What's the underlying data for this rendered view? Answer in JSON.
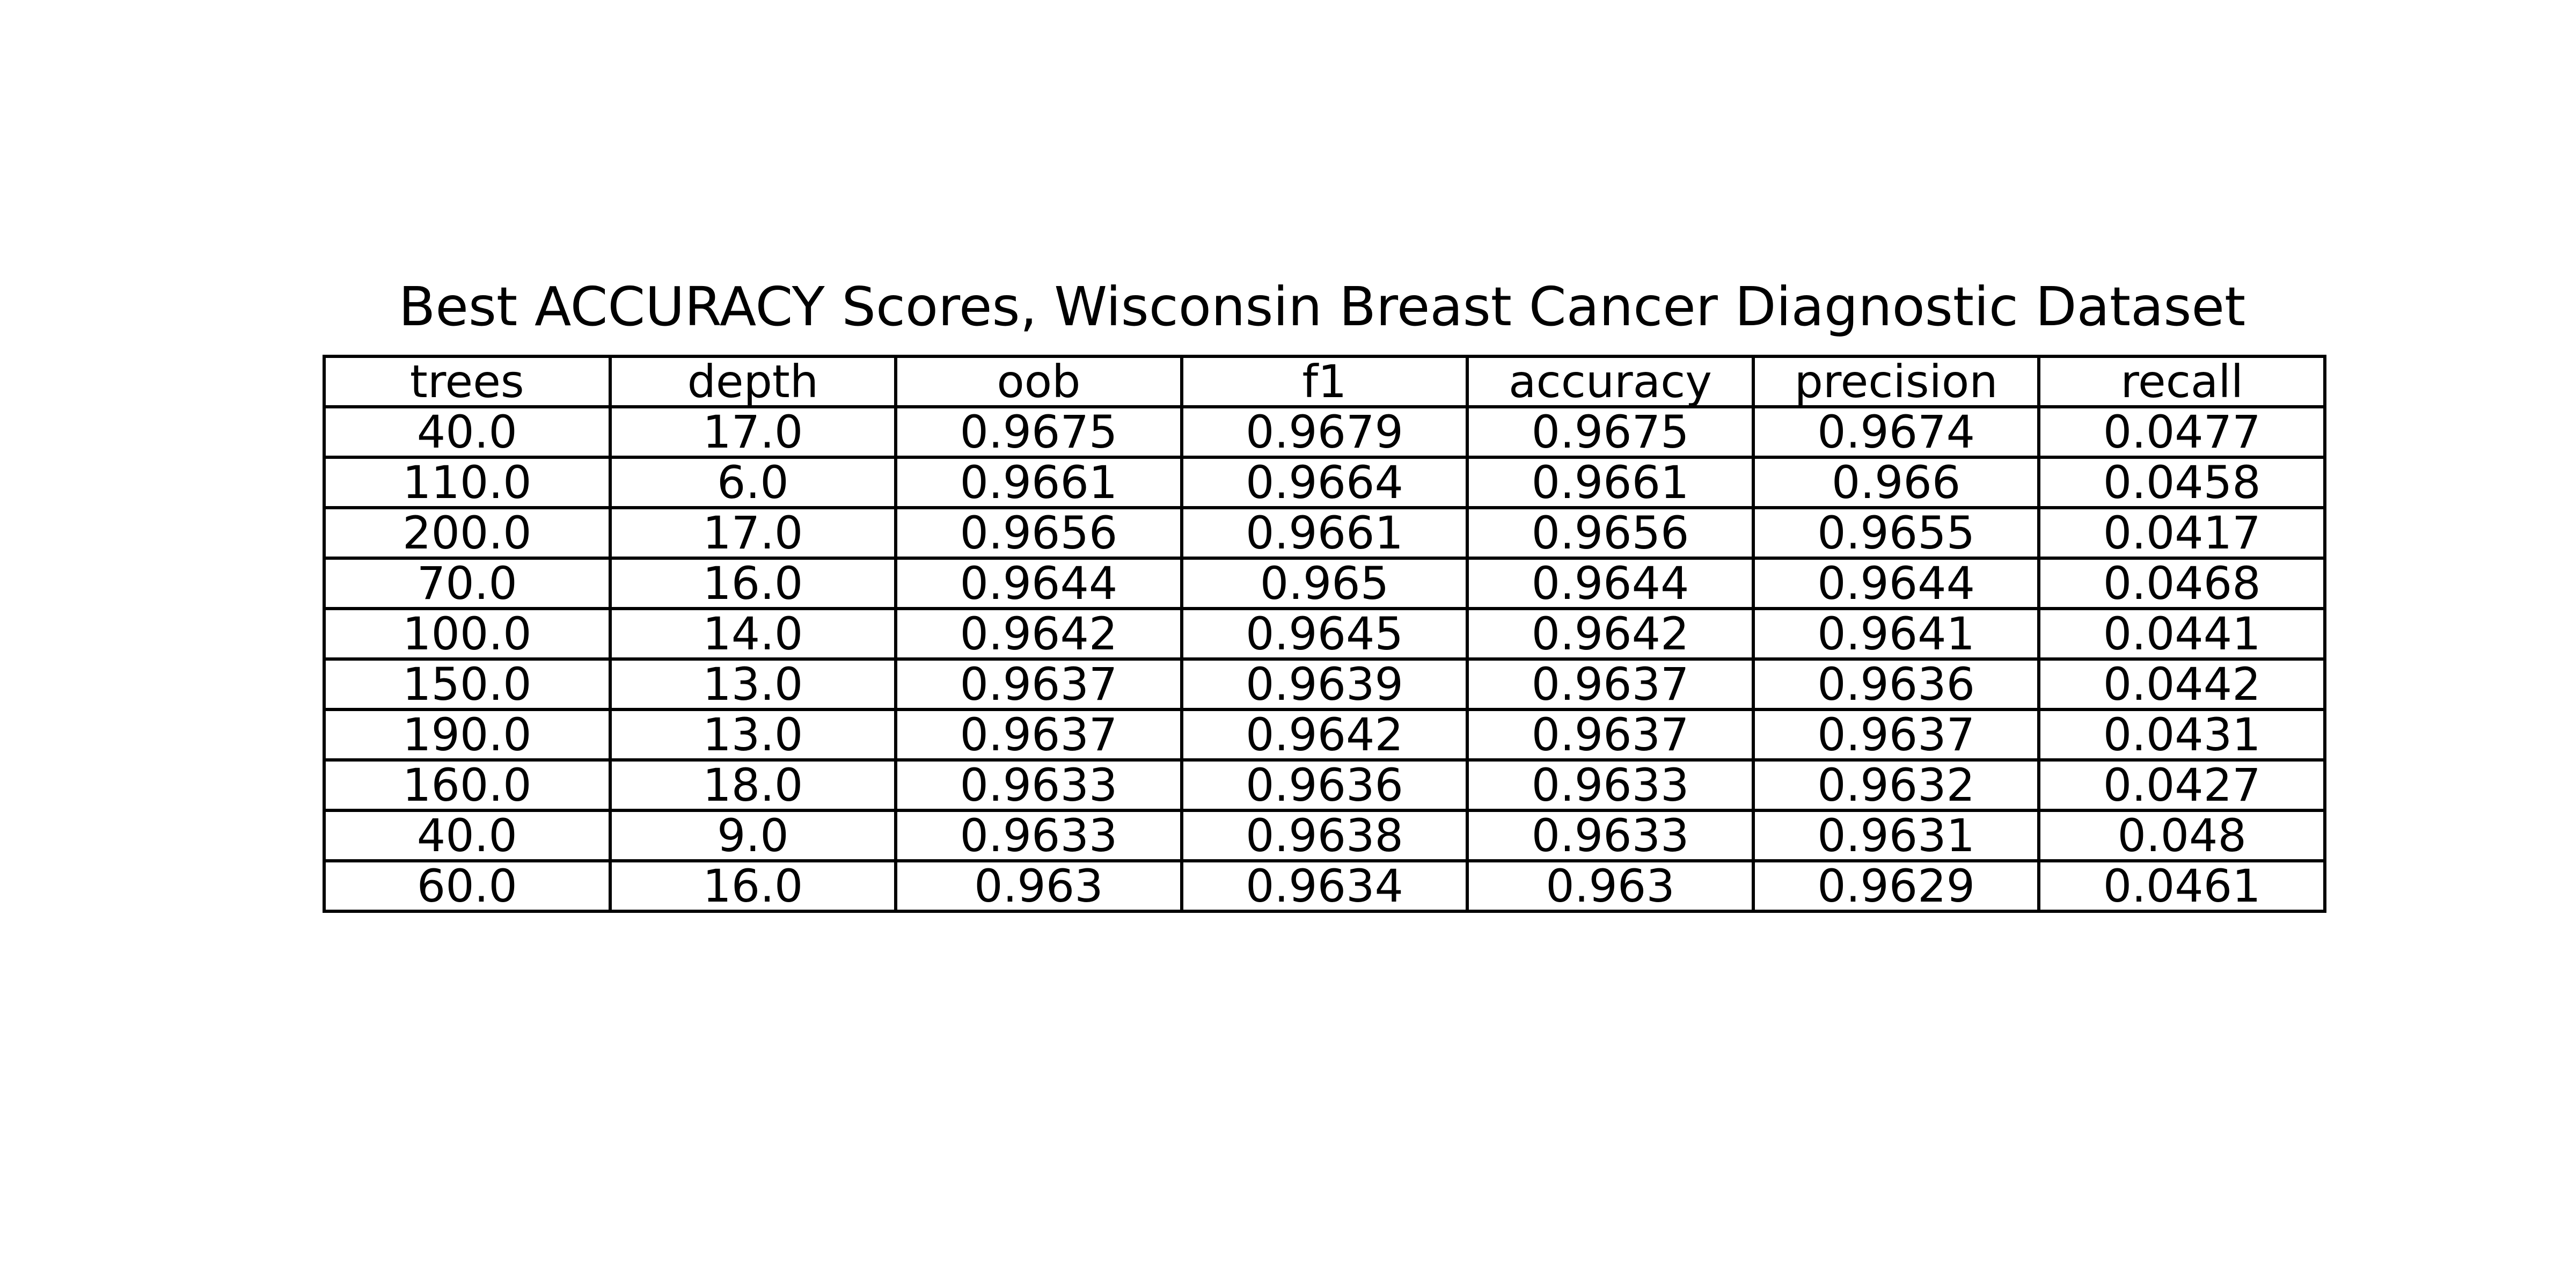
{
  "chart_data": {
    "type": "table",
    "title": "Best ACCURACY Scores, Wisconsin Breast Cancer Diagnostic Dataset",
    "columns": [
      "trees",
      "depth",
      "oob",
      "f1",
      "accuracy",
      "precision",
      "recall"
    ],
    "rows": [
      [
        "40.0",
        "17.0",
        "0.9675",
        "0.9679",
        "0.9675",
        "0.9674",
        "0.0477"
      ],
      [
        "110.0",
        "6.0",
        "0.9661",
        "0.9664",
        "0.9661",
        "0.966",
        "0.0458"
      ],
      [
        "200.0",
        "17.0",
        "0.9656",
        "0.9661",
        "0.9656",
        "0.9655",
        "0.0417"
      ],
      [
        "70.0",
        "16.0",
        "0.9644",
        "0.965",
        "0.9644",
        "0.9644",
        "0.0468"
      ],
      [
        "100.0",
        "14.0",
        "0.9642",
        "0.9645",
        "0.9642",
        "0.9641",
        "0.0441"
      ],
      [
        "150.0",
        "13.0",
        "0.9637",
        "0.9639",
        "0.9637",
        "0.9636",
        "0.0442"
      ],
      [
        "190.0",
        "13.0",
        "0.9637",
        "0.9642",
        "0.9637",
        "0.9637",
        "0.0431"
      ],
      [
        "160.0",
        "18.0",
        "0.9633",
        "0.9636",
        "0.9633",
        "0.9632",
        "0.0427"
      ],
      [
        "40.0",
        "9.0",
        "0.9633",
        "0.9638",
        "0.9633",
        "0.9631",
        "0.048"
      ],
      [
        "60.0",
        "16.0",
        "0.963",
        "0.9634",
        "0.963",
        "0.9629",
        "0.0461"
      ]
    ]
  }
}
